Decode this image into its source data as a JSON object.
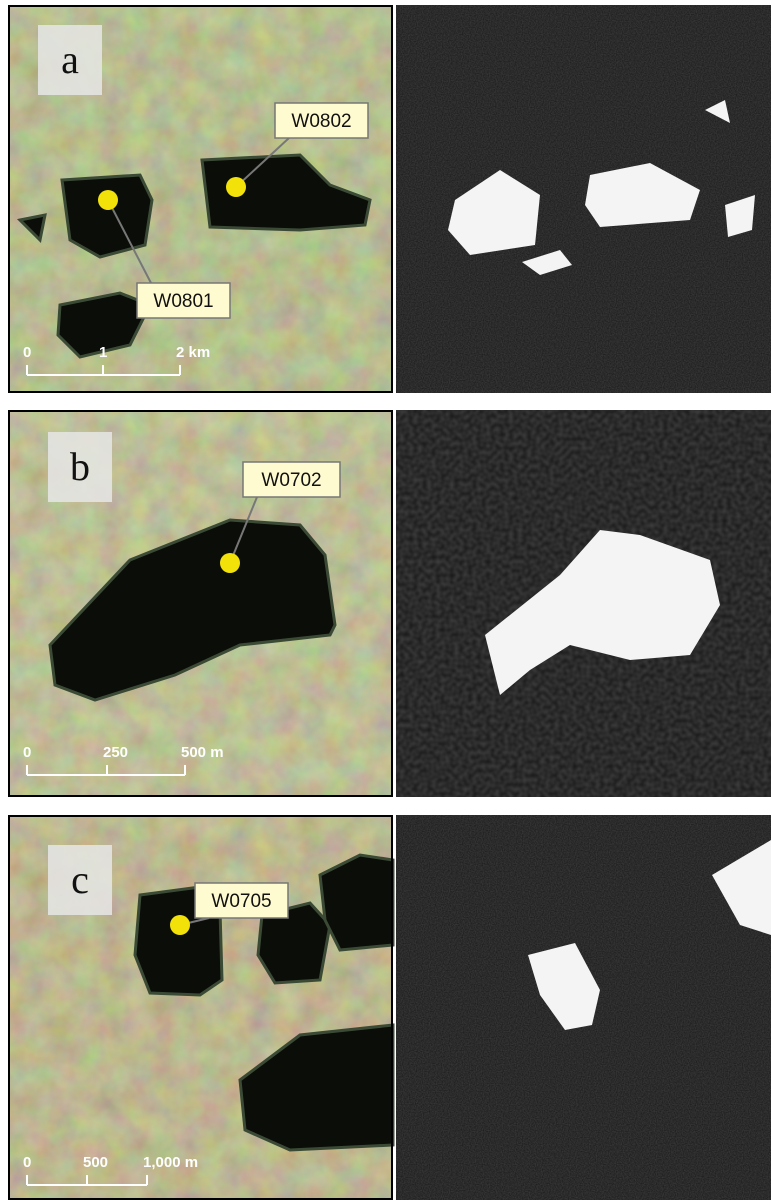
{
  "panels": [
    {
      "letter": "a",
      "sites": [
        "W0802",
        "W0801"
      ],
      "scale": [
        "0",
        "1",
        "2 km"
      ]
    },
    {
      "letter": "b",
      "sites": [
        "W0702"
      ],
      "scale": [
        "0",
        "250",
        "500 m"
      ]
    },
    {
      "letter": "c",
      "sites": [
        "W0705"
      ],
      "scale": [
        "0",
        "500",
        "1,000 m"
      ]
    }
  ]
}
